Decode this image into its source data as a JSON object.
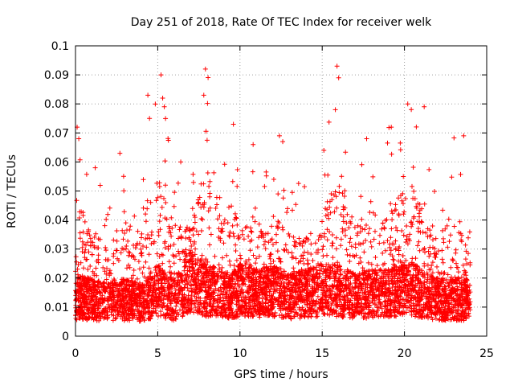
{
  "chart_data": {
    "type": "scatter",
    "title": "Day 251 of 2018, Rate Of TEC Index for receiver welk",
    "xlabel": "GPS time / hours",
    "ylabel": "ROTI / TECUs",
    "xlim": [
      0,
      25
    ],
    "ylim": [
      0,
      0.1
    ],
    "xticks": [
      "0",
      "5",
      "10",
      "15",
      "20",
      "25"
    ],
    "yticks": [
      "0",
      "0.01",
      "0.02",
      "0.03",
      "0.04",
      "0.05",
      "0.06",
      "0.07",
      "0.08",
      "0.09",
      "0.1"
    ],
    "grid": true,
    "marker": "plus",
    "series_color": "#ff0000",
    "approx_profile": {
      "description_of_points": "dense ROTI cloud from 0 to 24 h",
      "x": [
        0,
        0.2,
        1,
        2,
        3,
        4,
        4.5,
        5,
        5.3,
        6,
        7,
        8,
        9,
        9.5,
        10,
        11,
        12,
        12.5,
        13,
        14,
        15,
        16,
        16.5,
        17,
        18,
        19,
        20,
        20.3,
        21,
        22,
        23,
        24
      ],
      "y_typical": [
        0.012,
        0.013,
        0.012,
        0.011,
        0.012,
        0.011,
        0.013,
        0.015,
        0.014,
        0.012,
        0.018,
        0.015,
        0.014,
        0.013,
        0.015,
        0.014,
        0.015,
        0.014,
        0.013,
        0.014,
        0.015,
        0.015,
        0.014,
        0.013,
        0.014,
        0.014,
        0.015,
        0.016,
        0.014,
        0.012,
        0.012,
        0.012
      ],
      "y_peak": [
        0.043,
        0.072,
        0.058,
        0.046,
        0.063,
        0.055,
        0.083,
        0.09,
        0.082,
        0.06,
        0.055,
        0.092,
        0.065,
        0.073,
        0.055,
        0.066,
        0.056,
        0.069,
        0.055,
        0.054,
        0.064,
        0.093,
        0.08,
        0.06,
        0.068,
        0.072,
        0.08,
        0.079,
        0.079,
        0.052,
        0.069,
        0.04
      ]
    },
    "peaks": [
      {
        "x": 0.1,
        "y": 0.072
      },
      {
        "x": 0.2,
        "y": 0.068
      },
      {
        "x": 1.2,
        "y": 0.058
      },
      {
        "x": 2.7,
        "y": 0.063
      },
      {
        "x": 4.4,
        "y": 0.083
      },
      {
        "x": 4.5,
        "y": 0.075
      },
      {
        "x": 5.2,
        "y": 0.09
      },
      {
        "x": 5.3,
        "y": 0.082
      },
      {
        "x": 5.4,
        "y": 0.079
      },
      {
        "x": 6.4,
        "y": 0.06
      },
      {
        "x": 7.9,
        "y": 0.092
      },
      {
        "x": 7.8,
        "y": 0.083
      },
      {
        "x": 9.6,
        "y": 0.073
      },
      {
        "x": 10.8,
        "y": 0.066
      },
      {
        "x": 12.4,
        "y": 0.069
      },
      {
        "x": 12.6,
        "y": 0.067
      },
      {
        "x": 15.1,
        "y": 0.064
      },
      {
        "x": 15.9,
        "y": 0.093
      },
      {
        "x": 16.0,
        "y": 0.089
      },
      {
        "x": 15.8,
        "y": 0.078
      },
      {
        "x": 17.7,
        "y": 0.068
      },
      {
        "x": 19.2,
        "y": 0.072
      },
      {
        "x": 20.2,
        "y": 0.08
      },
      {
        "x": 21.2,
        "y": 0.079
      },
      {
        "x": 23.6,
        "y": 0.069
      }
    ]
  }
}
